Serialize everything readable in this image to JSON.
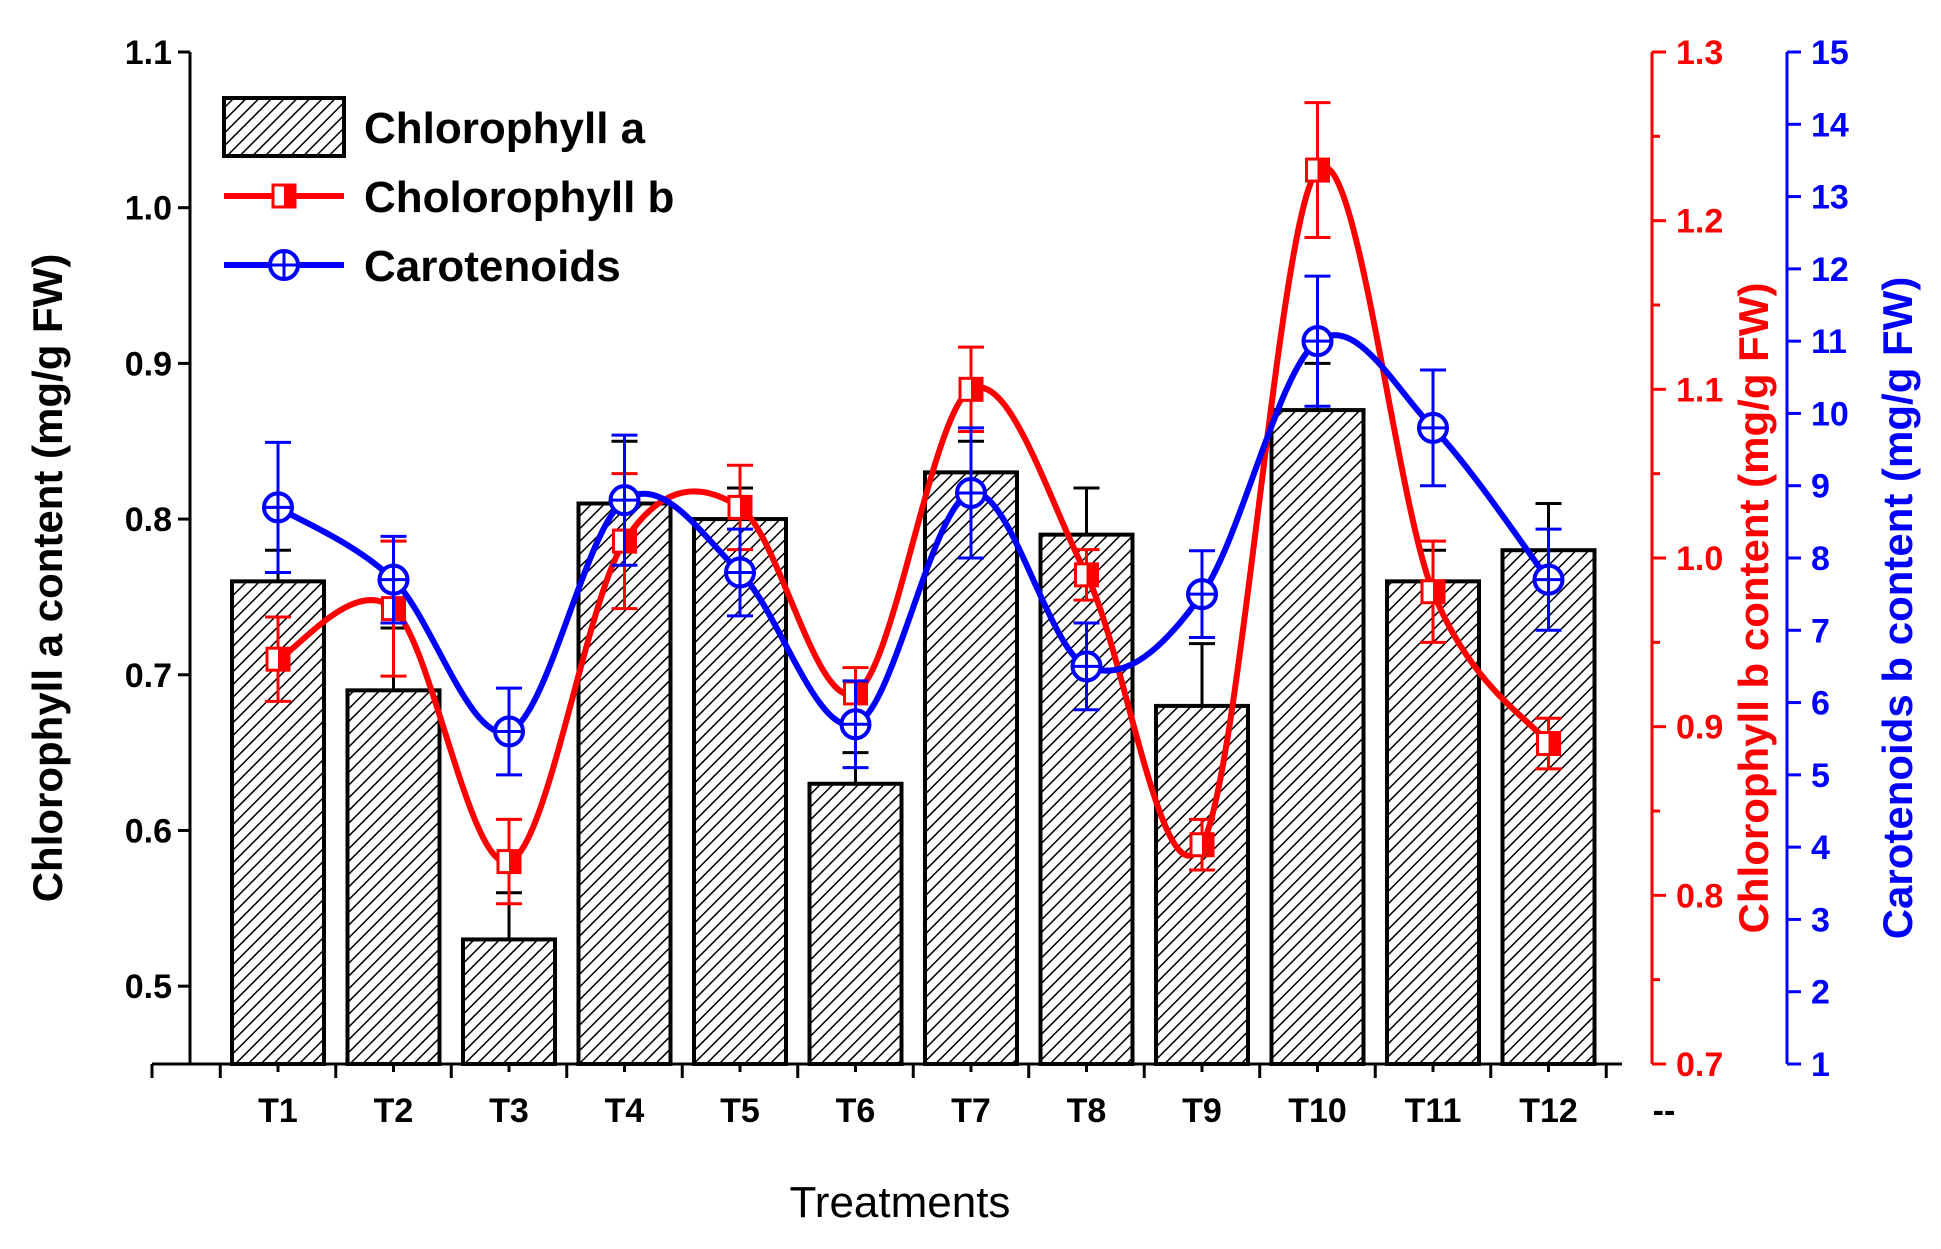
{
  "chart_data": {
    "type": "bar+line",
    "categories": [
      "T1",
      "T2",
      "T3",
      "T4",
      "T5",
      "T6",
      "T7",
      "T8",
      "T9",
      "T10",
      "T11",
      "T12"
    ],
    "extra_tick_label": "--",
    "xlabel": "Treatments",
    "axes": {
      "chl_a": {
        "label": "Chlorophyll a content (mg/g FW)",
        "lim": [
          0.45,
          1.1
        ],
        "ticks": [
          "0.5",
          "0.6",
          "0.7",
          "0.8",
          "0.9",
          "1.0",
          "1.1"
        ],
        "color": "#000000"
      },
      "chl_b": {
        "label": "Chlorophyll b content (mg/g FW)",
        "lim": [
          0.7,
          1.3
        ],
        "ticks": [
          "0.7",
          "0.8",
          "0.9",
          "1.0",
          "1.1",
          "1.2",
          "1.3"
        ],
        "color": "#ff0000"
      },
      "car": {
        "label": "Carotenoids b content (mg/g FW)",
        "lim": [
          1,
          15
        ],
        "ticks": [
          "1",
          "2",
          "3",
          "4",
          "5",
          "6",
          "7",
          "8",
          "9",
          "10",
          "11",
          "12",
          "13",
          "14",
          "15"
        ],
        "color": "#0000ff"
      }
    },
    "series": [
      {
        "name": "Chlorophyll a",
        "axis": "chl_a",
        "kind": "bar",
        "color": "#000000",
        "values": [
          0.76,
          0.69,
          0.53,
          0.81,
          0.8,
          0.63,
          0.83,
          0.79,
          0.68,
          0.87,
          0.76,
          0.78
        ],
        "errors": [
          0.02,
          0.04,
          0.03,
          0.04,
          0.02,
          0.02,
          0.02,
          0.03,
          0.04,
          0.03,
          0.02,
          0.03
        ]
      },
      {
        "name": "Cholorophyll b",
        "axis": "chl_b",
        "kind": "line",
        "marker": "square-half",
        "color": "#ff0000",
        "values": [
          0.94,
          0.97,
          0.82,
          1.01,
          1.03,
          0.92,
          1.1,
          0.99,
          0.83,
          1.23,
          0.98,
          0.89
        ],
        "errors": [
          0.025,
          0.04,
          0.025,
          0.04,
          0.025,
          0.015,
          0.025,
          0.015,
          0.015,
          0.04,
          0.03,
          0.015
        ]
      },
      {
        "name": "Carotenoids",
        "axis": "car",
        "kind": "line",
        "marker": "circle-plus",
        "color": "#0000ff",
        "values": [
          8.7,
          7.7,
          5.6,
          8.8,
          7.8,
          5.7,
          8.9,
          6.5,
          7.5,
          11.0,
          9.8,
          7.7
        ],
        "errors": [
          0.9,
          0.6,
          0.6,
          0.9,
          0.6,
          0.6,
          0.9,
          0.6,
          0.6,
          0.9,
          0.8,
          0.7
        ]
      }
    ],
    "legend": {
      "position": "top-left",
      "entries": [
        "Chlorophyll a",
        "Cholorophyll b",
        "Carotenoids"
      ]
    }
  }
}
